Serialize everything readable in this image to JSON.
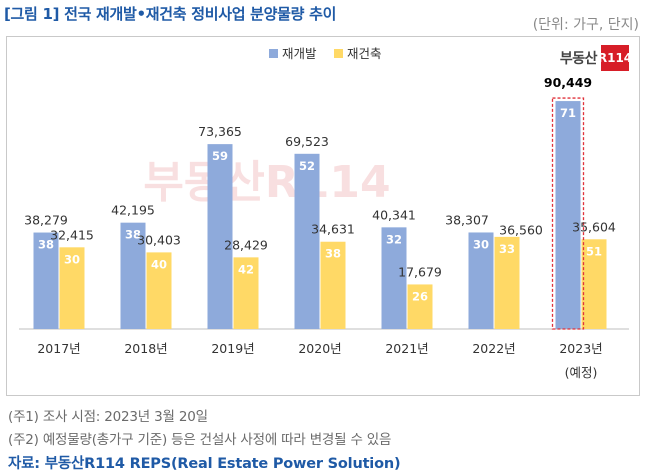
{
  "header": {
    "title": "[그림 1] 전국 재개발•재건축 정비사업 분양물량 추이",
    "unit": "(단위: 가구, 단지)"
  },
  "logo": {
    "text": "부동산",
    "mark": "R114"
  },
  "colors": {
    "redevelopment": "#8eaadb",
    "reconstruction": "#ffd966",
    "highlight_border": "#e0323b",
    "watermark": "#f3c6c8"
  },
  "notes": [
    "(주1) 조사 시점: 2023년 3월 20일",
    "(주2) 예정물량(총가구 기준) 등은 건설사 사정에 따라 변경될 수 있음"
  ],
  "source": "자료: 부동산R114 REPS(Real Estate Power Solution)",
  "chart_data": {
    "type": "bar",
    "categories": [
      "2017년",
      "2018년",
      "2019년",
      "2020년",
      "2021년",
      "2022년",
      "2023년"
    ],
    "category_sublabels": [
      "",
      "",
      "",
      "",
      "",
      "",
      "(예정)"
    ],
    "series": [
      {
        "name": "재개발",
        "households": [
          38279,
          42195,
          73365,
          69523,
          40341,
          38307,
          90449
        ],
        "household_labels": [
          "38,279",
          "42,195",
          "73,365",
          "69,523",
          "40,341",
          "38,307",
          "90,449"
        ],
        "complexes": [
          38,
          38,
          59,
          52,
          32,
          30,
          71
        ]
      },
      {
        "name": "재건축",
        "households": [
          32415,
          30403,
          28429,
          34631,
          17679,
          36560,
          35604
        ],
        "household_labels": [
          "32,415",
          "30,403",
          "28,429",
          "34,631",
          "17,679",
          "36,560",
          "35,604"
        ],
        "complexes": [
          30,
          40,
          42,
          38,
          26,
          33,
          51
        ]
      }
    ],
    "highlight_category": "2023년",
    "legend_position": "top-center",
    "grid": false,
    "ylim": [
      0,
      100000
    ]
  }
}
